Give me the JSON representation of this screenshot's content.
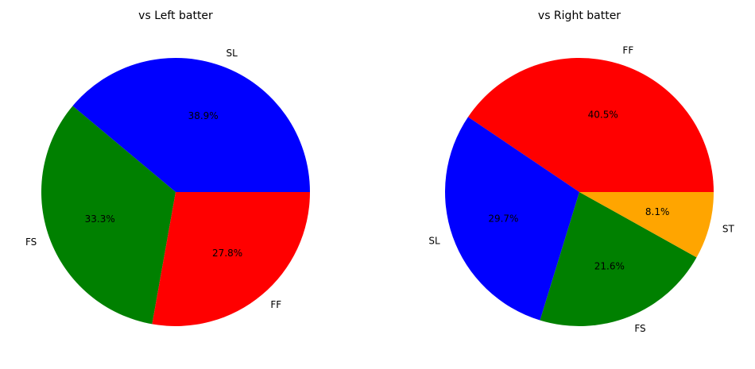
{
  "chart_data": [
    {
      "type": "pie",
      "title": "vs Left batter",
      "categories": [
        "SL",
        "FS",
        "FF"
      ],
      "values": [
        38.9,
        33.3,
        27.8
      ],
      "value_labels": [
        "38.9%",
        "33.3%",
        "27.8%"
      ],
      "colors": [
        "#0000ff",
        "#008000",
        "#ff0000"
      ]
    },
    {
      "type": "pie",
      "title": "vs Right batter",
      "categories": [
        "FF",
        "SL",
        "FS",
        "ST"
      ],
      "values": [
        40.5,
        29.7,
        21.6,
        8.1
      ],
      "value_labels": [
        "40.5%",
        "29.7%",
        "21.6%",
        "8.1%"
      ],
      "colors": [
        "#ff0000",
        "#0000ff",
        "#008000",
        "#ffa500"
      ]
    }
  ]
}
